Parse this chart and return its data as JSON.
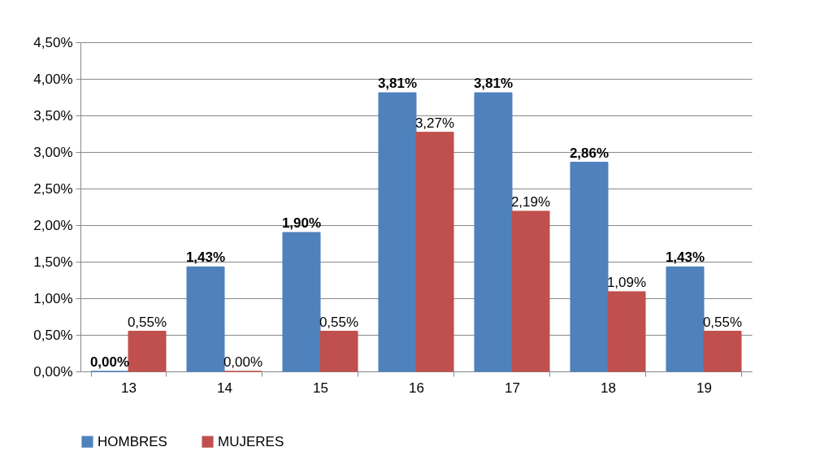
{
  "chart_data": {
    "type": "bar",
    "categories": [
      "13",
      "14",
      "15",
      "16",
      "17",
      "18",
      "19"
    ],
    "series": [
      {
        "name": "HOMBRES",
        "color": "#4f81bd",
        "values": [
          0,
          1.43,
          1.9,
          3.81,
          3.81,
          2.86,
          1.43
        ],
        "value_labels": [
          "0,00%",
          "1,43%",
          "1,90%",
          "3,81%",
          "3,81%",
          "2,86%",
          "1,43%"
        ]
      },
      {
        "name": "MUJERES",
        "color": "#c0504d",
        "values": [
          0.55,
          0,
          0.55,
          3.27,
          2.19,
          1.09,
          0.55
        ],
        "value_labels": [
          "0,55%",
          "0,00%",
          "0,55%",
          "3,27%",
          "2,19%",
          "1,09%",
          "0,55%"
        ]
      }
    ],
    "ylim": [
      0,
      4.5
    ],
    "yticks": [
      {
        "value": 0,
        "label": "0,00%"
      },
      {
        "value": 0.5,
        "label": "0,50%"
      },
      {
        "value": 1,
        "label": "1,00%"
      },
      {
        "value": 1.5,
        "label": "1,50%"
      },
      {
        "value": 2,
        "label": "2,00%"
      },
      {
        "value": 2.5,
        "label": "2,50%"
      },
      {
        "value": 3,
        "label": "3,00%"
      },
      {
        "value": 3.5,
        "label": "3,50%"
      },
      {
        "value": 4,
        "label": "4,00%"
      },
      {
        "value": 4.5,
        "label": "4,50%"
      }
    ],
    "grid": "y",
    "legend": "bottom"
  }
}
